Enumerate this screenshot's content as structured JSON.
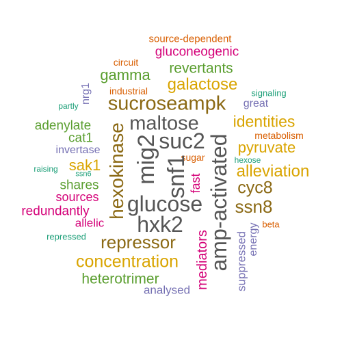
{
  "colors": {
    "dark_gray": "#555555",
    "brown": "#8B6914",
    "green": "#5A9E2F",
    "gold": "#D9A400",
    "magenta": "#D40078",
    "orange": "#D95F02",
    "teal": "#1B9E77",
    "slate": "#7570B3"
  },
  "words": [
    {
      "text": "source-dependent",
      "color": "orange",
      "rot": 0
    },
    {
      "text": "gluconeogenic",
      "color": "magenta",
      "rot": 0
    },
    {
      "text": "circuit",
      "color": "orange",
      "rot": 0
    },
    {
      "text": "revertants",
      "color": "green",
      "rot": 0
    },
    {
      "text": "gamma",
      "color": "green",
      "rot": 0
    },
    {
      "text": "galactose",
      "color": "gold",
      "rot": 0
    },
    {
      "text": "nrg1",
      "color": "slate",
      "rot": -90
    },
    {
      "text": "industrial",
      "color": "orange",
      "rot": 0
    },
    {
      "text": "signaling",
      "color": "teal",
      "rot": 0
    },
    {
      "text": "partly",
      "color": "teal",
      "rot": 0
    },
    {
      "text": "sucroseampk",
      "color": "brown",
      "rot": 0
    },
    {
      "text": "great",
      "color": "slate",
      "rot": 0
    },
    {
      "text": "maltose",
      "color": "dark_gray",
      "rot": 0
    },
    {
      "text": "identities",
      "color": "gold",
      "rot": 0
    },
    {
      "text": "adenylate",
      "color": "green",
      "rot": 0
    },
    {
      "text": "metabolism",
      "color": "orange",
      "rot": 0
    },
    {
      "text": "cat1",
      "color": "green",
      "rot": 0
    },
    {
      "text": "suc2",
      "color": "dark_gray",
      "rot": 0
    },
    {
      "text": "pyruvate",
      "color": "gold",
      "rot": 0
    },
    {
      "text": "invertase",
      "color": "slate",
      "rot": 0
    },
    {
      "text": "sugar",
      "color": "orange",
      "rot": 0
    },
    {
      "text": "hexose",
      "color": "teal",
      "rot": 0
    },
    {
      "text": "sak1",
      "color": "gold",
      "rot": 0
    },
    {
      "text": "raising",
      "color": "teal",
      "rot": 0
    },
    {
      "text": "ssn6",
      "color": "teal",
      "rot": 0
    },
    {
      "text": "alleviation",
      "color": "gold",
      "rot": 0
    },
    {
      "text": "mig2",
      "color": "dark_gray",
      "rot": -90
    },
    {
      "text": "snf1",
      "color": "dark_gray",
      "rot": -90
    },
    {
      "text": "fast",
      "color": "magenta",
      "rot": -90
    },
    {
      "text": "hexokinase",
      "color": "brown",
      "rot": -90
    },
    {
      "text": "amp-activated",
      "color": "dark_gray",
      "rot": -90
    },
    {
      "text": "shares",
      "color": "green",
      "rot": 0
    },
    {
      "text": "cyc8",
      "color": "brown",
      "rot": 0
    },
    {
      "text": "sources",
      "color": "magenta",
      "rot": 0
    },
    {
      "text": "glucose",
      "color": "dark_gray",
      "rot": 0
    },
    {
      "text": "redundantly",
      "color": "magenta",
      "rot": 0
    },
    {
      "text": "ssn8",
      "color": "brown",
      "rot": 0
    },
    {
      "text": "allelic",
      "color": "magenta",
      "rot": 0
    },
    {
      "text": "hxk2",
      "color": "dark_gray",
      "rot": 0
    },
    {
      "text": "beta",
      "color": "orange",
      "rot": 0
    },
    {
      "text": "repressed",
      "color": "teal",
      "rot": 0
    },
    {
      "text": "repressor",
      "color": "brown",
      "rot": 0
    },
    {
      "text": "energy",
      "color": "slate",
      "rot": -90
    },
    {
      "text": "mediators",
      "color": "magenta",
      "rot": -90
    },
    {
      "text": "suppressed",
      "color": "slate",
      "rot": -90
    },
    {
      "text": "concentration",
      "color": "gold",
      "rot": 0
    },
    {
      "text": "heterotrimer",
      "color": "green",
      "rot": 0
    },
    {
      "text": "analysed",
      "color": "slate",
      "rot": 0
    }
  ]
}
